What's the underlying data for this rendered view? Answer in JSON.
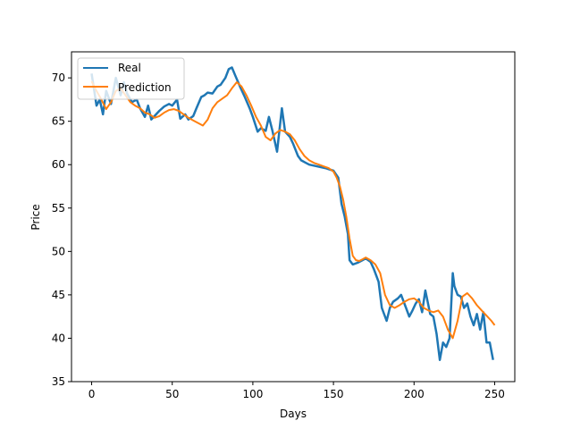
{
  "chart_data": {
    "type": "line",
    "xlabel": "Days",
    "ylabel": "Price",
    "xlim": [
      -12.5,
      262.5
    ],
    "ylim": [
      35,
      73
    ],
    "x_ticks": [
      0,
      50,
      100,
      150,
      200,
      250
    ],
    "y_ticks": [
      35,
      40,
      45,
      50,
      55,
      60,
      65,
      70
    ],
    "grid": false,
    "legend_placement": "upper-left",
    "legend": [
      {
        "name": "Real",
        "color": "#1f77b4"
      },
      {
        "name": "Prediction",
        "color": "#ff7f0e"
      }
    ],
    "series": [
      {
        "name": "Real",
        "color": "#1f77b4",
        "x": [
          0,
          3,
          5,
          7,
          9,
          12,
          15,
          18,
          20,
          22,
          25,
          28,
          30,
          33,
          35,
          37,
          40,
          42,
          45,
          48,
          50,
          53,
          55,
          58,
          60,
          63,
          65,
          68,
          70,
          72,
          75,
          78,
          80,
          83,
          85,
          87,
          89,
          92,
          95,
          98,
          100,
          103,
          105,
          108,
          110,
          112,
          115,
          118,
          120,
          123,
          125,
          128,
          130,
          133,
          135,
          140,
          145,
          150,
          153,
          155,
          157,
          159,
          160,
          162,
          165,
          168,
          170,
          173,
          175,
          178,
          180,
          183,
          185,
          187,
          190,
          192,
          195,
          197,
          199,
          201,
          203,
          205,
          207,
          210,
          212,
          214,
          216,
          218,
          220,
          222,
          224,
          225,
          227,
          229,
          231,
          233,
          235,
          237,
          239,
          241,
          243,
          245,
          247,
          249
        ],
        "values": [
          70.5,
          66.8,
          67.5,
          65.8,
          68.5,
          67.0,
          70.0,
          68.0,
          69.5,
          68.2,
          67.2,
          67.5,
          66.5,
          65.5,
          66.8,
          65.2,
          65.8,
          66.2,
          66.7,
          67.0,
          66.8,
          67.5,
          65.3,
          65.8,
          65.2,
          65.6,
          66.5,
          67.8,
          68.0,
          68.3,
          68.2,
          69.0,
          69.2,
          70.0,
          71.0,
          71.2,
          70.3,
          69.0,
          67.8,
          66.5,
          65.5,
          63.8,
          64.2,
          63.9,
          65.5,
          64.0,
          61.5,
          66.5,
          63.8,
          63.2,
          62.4,
          61.0,
          60.5,
          60.2,
          60.0,
          59.8,
          59.6,
          59.3,
          58.5,
          55.5,
          54.0,
          52.0,
          49.0,
          48.5,
          48.7,
          49.0,
          49.2,
          48.8,
          48.0,
          46.5,
          43.5,
          42.0,
          43.5,
          44.2,
          44.6,
          45.0,
          43.5,
          42.5,
          43.2,
          44.0,
          44.5,
          43.0,
          45.5,
          42.8,
          42.5,
          40.5,
          37.5,
          39.5,
          39.0,
          40.0,
          47.5,
          46.0,
          45.0,
          44.8,
          43.5,
          44.0,
          42.5,
          41.5,
          42.8,
          41.0,
          43.0,
          39.5,
          39.5,
          37.5
        ]
      },
      {
        "name": "Prediction",
        "color": "#ff7f0e",
        "x": [
          0,
          3,
          6,
          9,
          12,
          15,
          18,
          21,
          24,
          27,
          30,
          33,
          36,
          39,
          42,
          45,
          48,
          51,
          54,
          57,
          60,
          63,
          66,
          69,
          72,
          75,
          78,
          81,
          84,
          87,
          90,
          93,
          96,
          99,
          102,
          105,
          108,
          111,
          114,
          117,
          120,
          123,
          126,
          129,
          132,
          135,
          138,
          141,
          144,
          147,
          150,
          152,
          154,
          156,
          158,
          160,
          162,
          164,
          166,
          168,
          170,
          173,
          176,
          179,
          182,
          185,
          188,
          191,
          194,
          197,
          200,
          203,
          206,
          209,
          212,
          215,
          218,
          221,
          224,
          227,
          230,
          233,
          236,
          239,
          242,
          245,
          248,
          250
        ],
        "values": [
          69.6,
          68.5,
          67.5,
          66.4,
          67.2,
          68.5,
          68.8,
          68.0,
          67.2,
          66.8,
          66.5,
          66.0,
          65.8,
          65.4,
          65.6,
          66.0,
          66.3,
          66.4,
          66.2,
          65.8,
          65.4,
          65.1,
          64.8,
          64.5,
          65.2,
          66.5,
          67.2,
          67.6,
          68.0,
          68.8,
          69.5,
          69.0,
          68.0,
          66.8,
          65.5,
          64.5,
          63.2,
          62.8,
          63.6,
          64.0,
          63.8,
          63.5,
          62.8,
          61.8,
          61.0,
          60.5,
          60.2,
          60.0,
          59.8,
          59.6,
          59.2,
          58.5,
          57.5,
          56.0,
          54.0,
          51.5,
          49.5,
          49.0,
          48.9,
          49.1,
          49.3,
          49.0,
          48.5,
          47.5,
          45.0,
          43.8,
          43.5,
          43.8,
          44.2,
          44.5,
          44.6,
          44.2,
          43.5,
          43.2,
          43.0,
          43.2,
          42.5,
          41.0,
          40.0,
          42.0,
          44.8,
          45.2,
          44.6,
          43.8,
          43.2,
          42.6,
          42.0,
          41.5
        ]
      }
    ]
  }
}
